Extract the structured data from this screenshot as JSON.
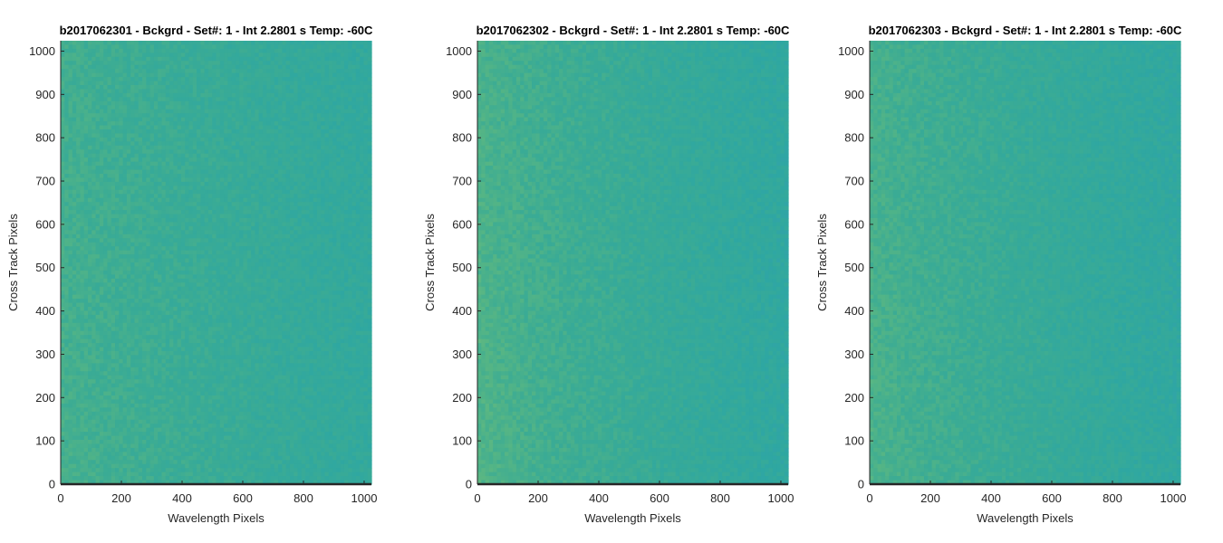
{
  "figure": {
    "background": "#ffffff",
    "colormap": [
      "#3b9bb5",
      "#2ea7a2",
      "#3aab95",
      "#55b585",
      "#7ec177"
    ]
  },
  "chart_data": [
    {
      "type": "heatmap",
      "title": "b2017062301 - Bckgrd - Set#: 1 - Int 2.2801 s Temp: -60C",
      "xlabel": "Wavelength Pixels",
      "ylabel": "Cross Track Pixels",
      "xlim": [
        0,
        1024
      ],
      "ylim": [
        0,
        1024
      ],
      "xticks": [
        0,
        200,
        400,
        600,
        800,
        1000
      ],
      "yticks": [
        0,
        100,
        200,
        300,
        400,
        500,
        600,
        700,
        800,
        900,
        1000
      ],
      "grid": false,
      "colormap": "parula",
      "left_brightness": 0.58,
      "right_brightness": 0.36
    },
    {
      "type": "heatmap",
      "title": "b2017062302 - Bckgrd - Set#: 1 - Int 2.2801 s Temp: -60C",
      "xlabel": "Wavelength Pixels",
      "ylabel": "Cross Track Pixels",
      "xlim": [
        0,
        1024
      ],
      "ylim": [
        0,
        1024
      ],
      "xticks": [
        0,
        200,
        400,
        600,
        800,
        1000
      ],
      "yticks": [
        0,
        100,
        200,
        300,
        400,
        500,
        600,
        700,
        800,
        900,
        1000
      ],
      "grid": false,
      "colormap": "parula",
      "left_brightness": 0.66,
      "right_brightness": 0.3
    },
    {
      "type": "heatmap",
      "title": "b2017062303 - Bckgrd - Set#: 1 - Int 2.2801 s Temp: -60C",
      "xlabel": "Wavelength Pixels",
      "ylabel": "Cross Track Pixels",
      "xlim": [
        0,
        1024
      ],
      "ylim": [
        0,
        1024
      ],
      "xticks": [
        0,
        200,
        400,
        600,
        800,
        1000
      ],
      "yticks": [
        0,
        100,
        200,
        300,
        400,
        500,
        600,
        700,
        800,
        900,
        1000
      ],
      "grid": false,
      "colormap": "parula",
      "left_brightness": 0.62,
      "right_brightness": 0.3
    }
  ]
}
